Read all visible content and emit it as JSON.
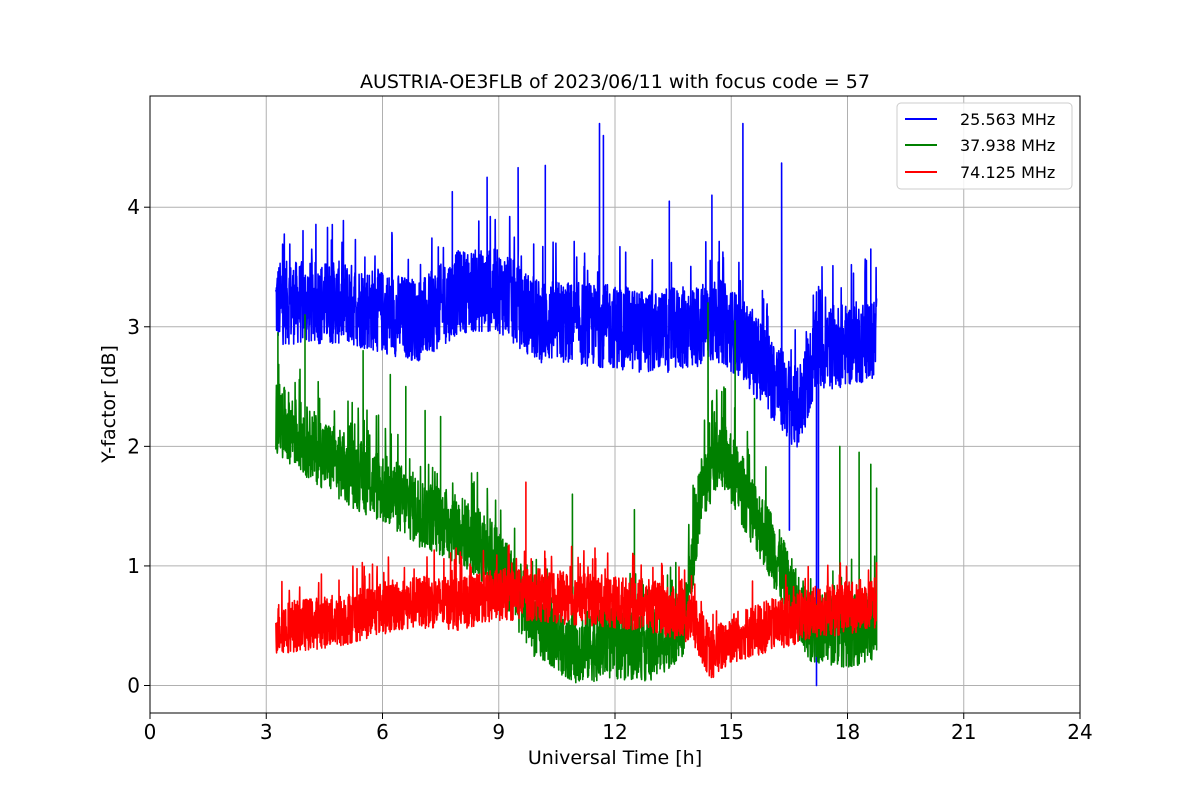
{
  "chart_data": {
    "type": "line",
    "title": "AUSTRIA-OE3FLB of 2023/06/11 with focus code = 57",
    "xlabel": "Universal Time [h]",
    "ylabel": "Y-factor [dB]",
    "xlim": [
      0,
      24
    ],
    "ylim": [
      -0.23,
      4.93
    ],
    "xticks": [
      0,
      3,
      6,
      9,
      12,
      15,
      18,
      21,
      24
    ],
    "yticks": [
      0,
      1,
      2,
      3,
      4
    ],
    "xtick_labels": [
      "0",
      "3",
      "6",
      "9",
      "12",
      "15",
      "18",
      "21",
      "24"
    ],
    "ytick_labels": [
      "0",
      "1",
      "2",
      "3",
      "4"
    ],
    "grid": true,
    "legend_position": "top-right",
    "x_range": [
      3.25,
      18.75
    ],
    "series": [
      {
        "name": "25.563 MHz",
        "color": "#0000ff",
        "baseline": [
          [
            3.25,
            3.2
          ],
          [
            5,
            3.2
          ],
          [
            7,
            3.05
          ],
          [
            8,
            3.3
          ],
          [
            9,
            3.3
          ],
          [
            10,
            3.05
          ],
          [
            12,
            3.0
          ],
          [
            13,
            2.95
          ],
          [
            14,
            3.0
          ],
          [
            14.7,
            3.05
          ],
          [
            15.3,
            2.9
          ],
          [
            16,
            2.6
          ],
          [
            16.7,
            2.3
          ],
          [
            17.2,
            2.8
          ],
          [
            18.75,
            2.9
          ]
        ],
        "band": 0.35,
        "spikes": [
          [
            7.8,
            4.13
          ],
          [
            8.7,
            4.25
          ],
          [
            9.5,
            4.33
          ],
          [
            10.2,
            4.35
          ],
          [
            11.6,
            4.7
          ],
          [
            11.7,
            4.6
          ],
          [
            13.4,
            4.05
          ],
          [
            14.5,
            4.1
          ],
          [
            15.3,
            4.7
          ],
          [
            16.3,
            4.37
          ],
          [
            16.5,
            1.3
          ],
          [
            17.2,
            0.0
          ],
          [
            17.25,
            0.35
          ],
          [
            18.6,
            3.65
          ]
        ]
      },
      {
        "name": "37.938 MHz",
        "color": "#008000",
        "baseline": [
          [
            3.25,
            2.25
          ],
          [
            4,
            2.05
          ],
          [
            5,
            1.82
          ],
          [
            6,
            1.65
          ],
          [
            7,
            1.45
          ],
          [
            8,
            1.3
          ],
          [
            9,
            1.05
          ],
          [
            9.5,
            0.75
          ],
          [
            10,
            0.5
          ],
          [
            11,
            0.32
          ],
          [
            12,
            0.35
          ],
          [
            13,
            0.33
          ],
          [
            13.8,
            0.55
          ],
          [
            14.2,
            1.6
          ],
          [
            14.7,
            2.0
          ],
          [
            15,
            1.8
          ],
          [
            15.5,
            1.5
          ],
          [
            16,
            1.2
          ],
          [
            16.5,
            0.8
          ],
          [
            17,
            0.5
          ],
          [
            18,
            0.45
          ],
          [
            18.75,
            0.5
          ]
        ],
        "band": 0.3,
        "spikes": [
          [
            3.3,
            2.95
          ],
          [
            4,
            3.1
          ],
          [
            5.5,
            2.8
          ],
          [
            6.2,
            2.6
          ],
          [
            6.6,
            2.5
          ],
          [
            7.1,
            2.3
          ],
          [
            7.5,
            2.25
          ],
          [
            10.9,
            1.6
          ],
          [
            12.5,
            1.47
          ],
          [
            14.4,
            3.2
          ],
          [
            15.1,
            3.05
          ],
          [
            15.6,
            2.4
          ],
          [
            17.8,
            2.0
          ],
          [
            18.3,
            1.95
          ],
          [
            18.6,
            1.85
          ],
          [
            18.75,
            1.65
          ]
        ]
      },
      {
        "name": "74.125 MHz",
        "color": "#ff0000",
        "baseline": [
          [
            3.25,
            0.48
          ],
          [
            5,
            0.55
          ],
          [
            6,
            0.65
          ],
          [
            7,
            0.7
          ],
          [
            8,
            0.68
          ],
          [
            9,
            0.76
          ],
          [
            10,
            0.76
          ],
          [
            11,
            0.72
          ],
          [
            12,
            0.7
          ],
          [
            13,
            0.66
          ],
          [
            14,
            0.55
          ],
          [
            14.5,
            0.25
          ],
          [
            15,
            0.4
          ],
          [
            16,
            0.5
          ],
          [
            17,
            0.6
          ],
          [
            18,
            0.65
          ],
          [
            18.75,
            0.7
          ]
        ],
        "band": 0.22,
        "spikes": [
          [
            7.9,
            1.15
          ],
          [
            9.7,
            1.7
          ]
        ]
      }
    ]
  }
}
